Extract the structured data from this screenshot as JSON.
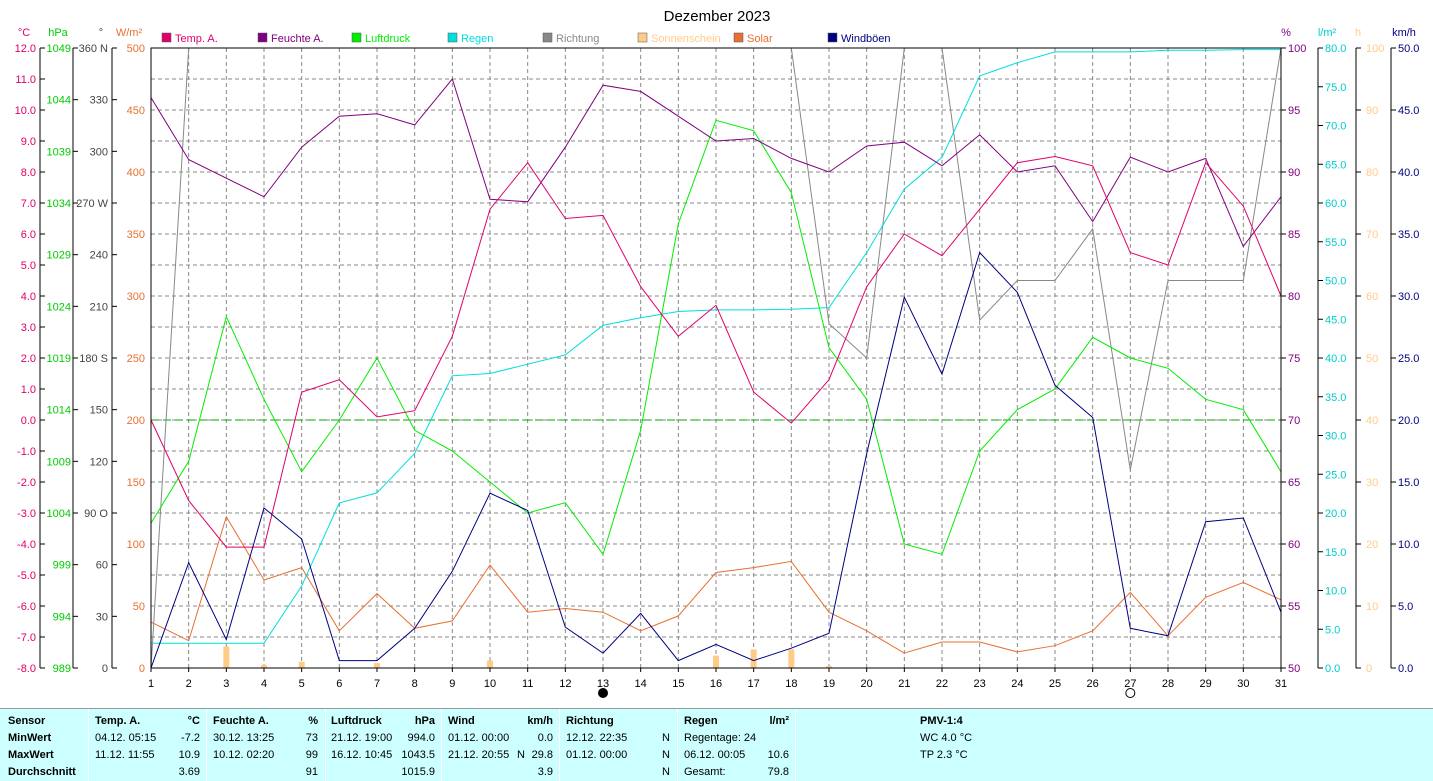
{
  "chart_data": {
    "type": "line",
    "title": "Dezember 2023",
    "x": [
      1,
      2,
      3,
      4,
      5,
      6,
      7,
      8,
      9,
      10,
      11,
      12,
      13,
      14,
      15,
      16,
      17,
      18,
      19,
      20,
      21,
      22,
      23,
      24,
      25,
      26,
      27,
      28,
      29,
      30,
      31
    ],
    "x_ticks": [
      "1",
      "2",
      "3",
      "4",
      "5",
      "6",
      "7",
      "8",
      "9",
      "10",
      "11",
      "12",
      "13",
      "14",
      "15",
      "16",
      "17",
      "18",
      "19",
      "20",
      "21",
      "22",
      "23",
      "24",
      "25",
      "26",
      "27",
      "28",
      "29",
      "30",
      "31"
    ],
    "moon_phases": [
      {
        "day": 13,
        "phase": "new"
      },
      {
        "day": 27,
        "phase": "full"
      }
    ],
    "axes": {
      "temp": {
        "unit": "°C",
        "min": -8,
        "max": 12,
        "ticks": [
          "12.0",
          "11.0",
          "10.0",
          "9.0",
          "8.0",
          "7.0",
          "6.0",
          "5.0",
          "4.0",
          "3.0",
          "2.0",
          "1.0",
          "0.0",
          "-1.0",
          "-2.0",
          "-3.0",
          "-4.0",
          "-5.0",
          "-6.0",
          "-7.0",
          "-8.0"
        ],
        "color": "#e0006c"
      },
      "pressure": {
        "unit": "hPa",
        "min": 989,
        "max": 1049,
        "ticks": [
          "1049",
          "1044",
          "1039",
          "1034",
          "1029",
          "1024",
          "1019",
          "1014",
          "1009",
          "1004",
          "999",
          "994",
          "989"
        ],
        "color": "#00cc00"
      },
      "direction": {
        "unit": "°",
        "min": 0,
        "max": 360,
        "ticks": [
          "360 N",
          "330",
          "300",
          "270 W",
          "240",
          "210",
          "180 S",
          "150",
          "120",
          "90  O",
          "60",
          "30",
          "0"
        ],
        "color": "#444444"
      },
      "solar": {
        "unit": "W/m²",
        "min": 0,
        "max": 500,
        "ticks": [
          "500",
          "450",
          "400",
          "350",
          "300",
          "250",
          "200",
          "150",
          "100",
          "50",
          "0"
        ],
        "color": "#e87030"
      },
      "humidity": {
        "unit": "%",
        "min": 50,
        "max": 100,
        "ticks": [
          "100",
          "95",
          "90",
          "85",
          "80",
          "75",
          "70",
          "65",
          "60",
          "55",
          "50"
        ],
        "color": "#800080"
      },
      "rain": {
        "unit": "l/m²",
        "min": 0,
        "max": 80,
        "ticks": [
          "80.0",
          "75.0",
          "70.0",
          "65.0",
          "60.0",
          "55.0",
          "50.0",
          "45.0",
          "40.0",
          "35.0",
          "30.0",
          "25.0",
          "20.0",
          "15.0",
          "10.0",
          "5.0",
          "0.0"
        ],
        "color": "#00cccc"
      },
      "sunshine": {
        "unit": "h",
        "min": 0,
        "max": 100,
        "ticks": [
          "100",
          "90",
          "80",
          "70",
          "60",
          "50",
          "40",
          "30",
          "20",
          "10",
          "0"
        ],
        "color": "#ffcc88"
      },
      "gust": {
        "unit": "km/h",
        "min": 0,
        "max": 50,
        "ticks": [
          "50.0",
          "45.0",
          "40.0",
          "35.0",
          "30.0",
          "25.0",
          "20.0",
          "15.0",
          "10.0",
          "5.0",
          "0.0"
        ],
        "color": "#000080"
      }
    },
    "series": [
      {
        "name": "Temp. A.",
        "axis": "temp",
        "color": "#e0006c",
        "values": [
          0.0,
          -2.6,
          -4.1,
          -4.1,
          0.9,
          1.3,
          0.1,
          0.3,
          2.7,
          6.8,
          8.3,
          6.5,
          6.6,
          4.3,
          2.7,
          3.7,
          0.9,
          -0.1,
          1.3,
          4.3,
          6.0,
          5.3,
          6.8,
          8.3,
          8.5,
          8.2,
          5.4,
          5.0,
          8.3,
          6.9,
          4.0
        ]
      },
      {
        "name": "Feuchte A.",
        "axis": "humidity",
        "color": "#800080",
        "values": [
          96.0,
          91.0,
          89.5,
          88.0,
          92.0,
          94.5,
          94.7,
          93.8,
          97.5,
          87.8,
          87.6,
          92.0,
          97.0,
          96.5,
          94.5,
          92.5,
          92.7,
          91.1,
          90.0,
          92.1,
          92.4,
          90.5,
          93.0,
          90.0,
          90.5,
          86.0,
          91.2,
          90.0,
          91.1,
          84.0,
          88.0
        ]
      },
      {
        "name": "Luftdruck",
        "axis": "pressure",
        "color": "#00ee00",
        "values": [
          1003,
          1009,
          1023,
          1015,
          1008,
          1013,
          1019,
          1012,
          1010,
          1007,
          1004,
          1005,
          1000,
          1012,
          1032,
          1042,
          1041,
          1035,
          1020,
          1015,
          1001,
          1000,
          1010,
          1014,
          1016,
          1021,
          1019,
          1018,
          1015,
          1014,
          1008
        ]
      },
      {
        "name": "Regen",
        "axis": "rain",
        "color": "#00dddd",
        "values": [
          3.2,
          3.2,
          3.2,
          3.2,
          10.6,
          21.3,
          22.6,
          27.7,
          37.7,
          38.0,
          39.2,
          40.4,
          44.2,
          45.2,
          46.0,
          46.2,
          46.2,
          46.3,
          46.5,
          53.6,
          61.8,
          65.9,
          76.4,
          78.1,
          79.5,
          79.5,
          79.5,
          79.7,
          79.7,
          79.8,
          79.8
        ]
      },
      {
        "name": "Richtung",
        "axis": "direction",
        "color": "#888888",
        "values": [
          0,
          360,
          360,
          360,
          360,
          360,
          360,
          360,
          360,
          360,
          360,
          360,
          360,
          360,
          360,
          360,
          360,
          360,
          200,
          180,
          360,
          360,
          202,
          225,
          225,
          255,
          115,
          225,
          225,
          225,
          360
        ]
      },
      {
        "name": "Sonnenschein",
        "axis": "sunshine",
        "color": "#ffcc88",
        "values": [
          0,
          0,
          3.5,
          0.5,
          1.0,
          0,
          0.8,
          0,
          0,
          1.2,
          0,
          0,
          0,
          0,
          0,
          2.0,
          3.0,
          3.0,
          0.3,
          0,
          0,
          0,
          0,
          0,
          0,
          0,
          0,
          0,
          0,
          0,
          0
        ]
      },
      {
        "name": "Solar",
        "axis": "solar",
        "color": "#e87030",
        "values": [
          37,
          22,
          122,
          71,
          81,
          30,
          60,
          32,
          38,
          83,
          45,
          48,
          45,
          30,
          42,
          77,
          81,
          86,
          45,
          30,
          12,
          21,
          21,
          13,
          18,
          30,
          61,
          26,
          57,
          69,
          55
        ]
      },
      {
        "name": "Windböen",
        "axis": "gust",
        "color": "#000080",
        "values": [
          0.0,
          8.5,
          2.3,
          12.9,
          10.4,
          0.6,
          0.6,
          3.2,
          7.8,
          14.1,
          12.7,
          3.3,
          1.2,
          4.4,
          0.6,
          1.9,
          0.6,
          1.6,
          2.8,
          17.3,
          29.9,
          23.7,
          33.5,
          30.3,
          22.8,
          20.2,
          3.2,
          2.6,
          11.8,
          12.1,
          4.5
        ]
      }
    ],
    "reference_line": {
      "axis": "temp",
      "value": 0.0,
      "color": "#00aa00"
    },
    "grid": true,
    "legend_position": "top"
  },
  "stats_table": {
    "sensor": {
      "header": "Sensor",
      "rows": [
        "MinWert",
        "MaxWert",
        "Durchschnitt"
      ]
    },
    "temp": {
      "header": "Temp. A.",
      "unit": "°C",
      "min_date": "04.12.",
      "min_time": "05:15",
      "min_value": "-7.2",
      "max_date": "11.12.",
      "max_time": "11:55",
      "max_value": "10.9",
      "avg": "3.69"
    },
    "humidity": {
      "header": "Feuchte A.",
      "unit": "%",
      "min_date": "30.12.",
      "min_time": "13:25",
      "min_value": "73",
      "max_date": "10.12.",
      "max_time": "02:20",
      "max_value": "99",
      "avg": "91"
    },
    "pressure": {
      "header": "Luftdruck",
      "unit": "hPa",
      "min_date": "21.12.",
      "min_time": "19:00",
      "min_value": "994.0",
      "max_date": "16.12.",
      "max_time": "10:45",
      "max_value": "1043.5",
      "avg": "1015.9"
    },
    "wind": {
      "header": "Wind",
      "unit": "km/h",
      "min_date": "01.12.",
      "min_time": "00:00",
      "min_value": "0.0",
      "max_date": "21.12.",
      "max_time": "20:55",
      "max_dir": "N",
      "max_value": "29.8",
      "avg": "3.9"
    },
    "direction": {
      "header": "Richtung",
      "min_date": "12.12.",
      "min_time": "22:35",
      "min_value": "N",
      "max_date": "01.12.",
      "max_time": "00:00",
      "max_value": "N",
      "avg": "N"
    },
    "rain": {
      "header": "Regen",
      "unit": "l/m²",
      "days_label": "Regentage: 24",
      "max_date": "06.12.",
      "max_time": "00:05",
      "max_value": "10.6",
      "total_label": "Gesamt:",
      "total_value": "79.8"
    },
    "pmv": {
      "header": "PMV-1:4",
      "wc": "WC 4.0 °C",
      "tp": "TP 2.3 °C"
    }
  }
}
